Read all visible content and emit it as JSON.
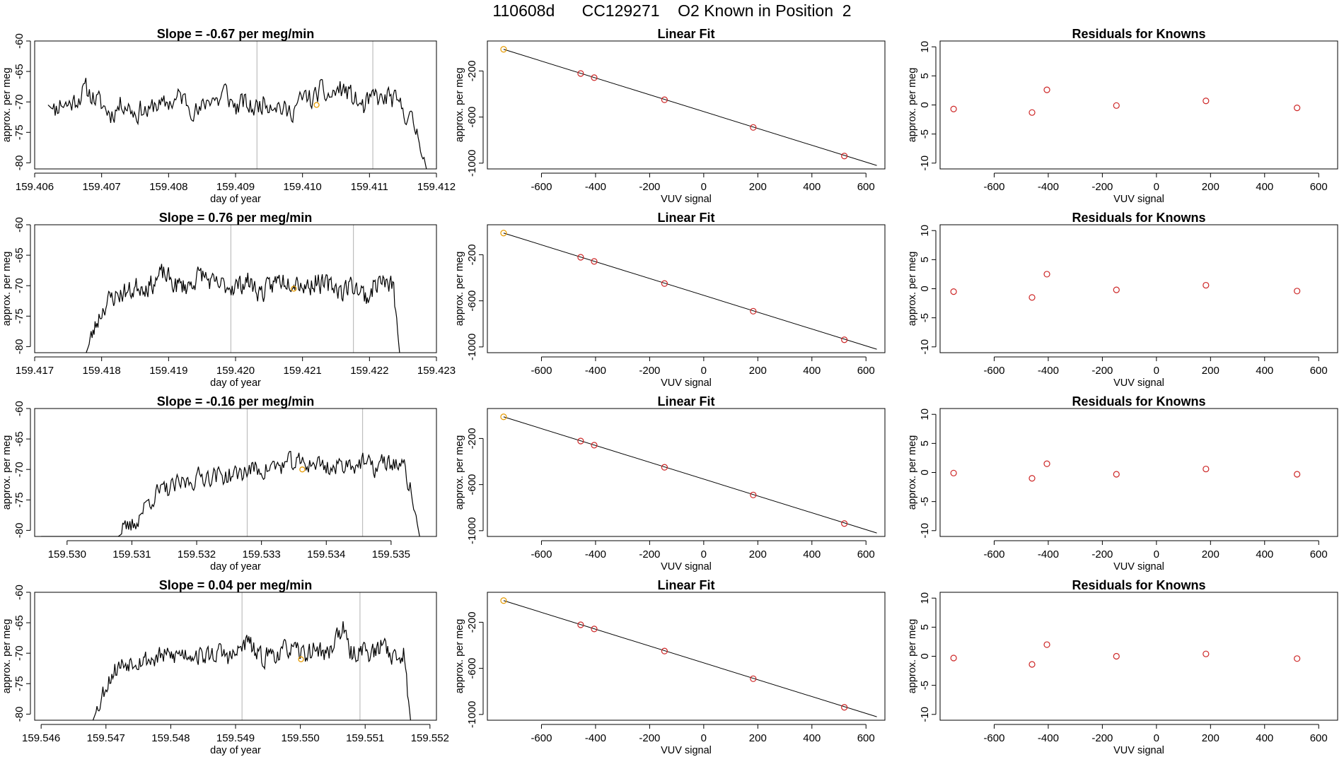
{
  "figure_title": "110608d      CC129271    O2 Known in Position  2",
  "colors": {
    "line": "#000000",
    "frame": "#000000",
    "vline": "#bebebe",
    "known_point": "#cd2626",
    "highlight_point": "#e69a00"
  },
  "chart_data": [
    {
      "type": "line",
      "row": 0,
      "title": "Slope =  -0.67  per meg/min",
      "xlabel": "day of year",
      "ylabel": "approx. per meg",
      "xlim": [
        159.406,
        159.412
      ],
      "ylim": [
        -81,
        -60
      ],
      "xticks": [
        "159.406",
        "159.407",
        "159.408",
        "159.409",
        "159.410",
        "159.411",
        "159.412"
      ],
      "yticks": [
        "-60",
        "-65",
        "-70",
        "-75",
        "-80"
      ],
      "vlines": [
        159.40932,
        159.41105
      ],
      "highlight": [
        159.41021,
        -70.5
      ],
      "series": {
        "start": 159.4062,
        "end": 159.41185,
        "base": [
          -70.5,
          -71.5,
          -70,
          -70.5,
          -70,
          -69,
          -68,
          -69,
          -70,
          -71,
          -72,
          -71,
          -70,
          -71,
          -72,
          -71,
          -72,
          -70,
          -71,
          -70,
          -70,
          -69,
          -70,
          -71,
          -72,
          -70,
          -69,
          -70,
          -68,
          -70,
          -71,
          -70,
          -71,
          -71,
          -70,
          -70,
          -70,
          -71,
          -72,
          -71,
          -70,
          -69,
          -70,
          -68,
          -69,
          -69,
          -68,
          -68,
          -69,
          -70,
          -71,
          -70,
          -69,
          -70,
          -69,
          -70,
          -71,
          -72,
          -74,
          -76,
          -81
        ],
        "noise": 2.5,
        "seed": 11
      }
    },
    {
      "type": "line",
      "row": 1,
      "title": "Slope =  0.76  per meg/min",
      "xlabel": "day of year",
      "ylabel": "approx. per meg",
      "xlim": [
        159.417,
        159.423
      ],
      "ylim": [
        -81,
        -60
      ],
      "xticks": [
        "159.417",
        "159.418",
        "159.419",
        "159.420",
        "159.421",
        "159.422",
        "159.423"
      ],
      "yticks": [
        "-60",
        "-65",
        "-70",
        "-75",
        "-80"
      ],
      "vlines": [
        159.41993,
        159.42176
      ],
      "highlight": [
        159.42087,
        -70.5
      ],
      "series": {
        "start": 159.41777,
        "end": 159.42245,
        "base": [
          -81,
          -78,
          -75,
          -73,
          -72,
          -71.5,
          -71,
          -71,
          -70,
          -70,
          -70,
          -69,
          -68,
          -69,
          -70,
          -70,
          -70,
          -69,
          -68,
          -69,
          -70,
          -70,
          -70,
          -70,
          -70,
          -69,
          -70,
          -71,
          -71,
          -70,
          -69,
          -69,
          -69,
          -69,
          -70,
          -70,
          -69,
          -70,
          -70,
          -70,
          -71,
          -70,
          -70,
          -71,
          -72,
          -70,
          -69,
          -70,
          -70,
          -81
        ],
        "noise": 2.4,
        "seed": 23
      }
    },
    {
      "type": "line",
      "row": 2,
      "title": "Slope =  -0.16  per meg/min",
      "xlabel": "day of year",
      "ylabel": "approx. per meg",
      "xlim": [
        159.5295,
        159.5357
      ],
      "ylim": [
        -81,
        -60
      ],
      "xticks": [
        "159.530",
        "159.531",
        "159.532",
        "159.533",
        "159.534",
        "159.535"
      ],
      "yticks": [
        "-60",
        "-65",
        "-70",
        "-75",
        "-80"
      ],
      "vlines": [
        159.53278,
        159.53456
      ],
      "highlight": [
        159.53363,
        -70
      ],
      "series": {
        "start": 159.5296,
        "end": 159.53544,
        "base": [
          -81,
          -81,
          -81,
          -81,
          -81,
          -81,
          -81,
          -81,
          -81,
          -81,
          -81,
          -80,
          -79,
          -77,
          -75,
          -74,
          -73.5,
          -73,
          -72.5,
          -72,
          -71.5,
          -71,
          -71,
          -71,
          -71,
          -71,
          -70.5,
          -70,
          -70,
          -70,
          -69.5,
          -69.5,
          -69,
          -69,
          -69,
          -69,
          -69,
          -69.5,
          -70,
          -69,
          -69,
          -69,
          -69,
          -70,
          -69,
          -69,
          -69,
          -70,
          -74,
          -81
        ],
        "noise": 2.3,
        "seed": 37,
        "noise_from": 11
      }
    },
    {
      "type": "line",
      "row": 3,
      "title": "Slope =  0.04  per meg/min",
      "xlabel": "day of year",
      "ylabel": "approx. per meg",
      "xlim": [
        159.5459,
        159.5521
      ],
      "ylim": [
        -81,
        -60
      ],
      "xticks": [
        "159.546",
        "159.547",
        "159.548",
        "159.549",
        "159.550",
        "159.551",
        "159.552"
      ],
      "yticks": [
        "-60",
        "-65",
        "-70",
        "-75",
        "-80"
      ],
      "vlines": [
        159.5491,
        159.55092
      ],
      "highlight": [
        159.55001,
        -71
      ],
      "series": {
        "start": 159.5468,
        "end": 159.5517,
        "base": [
          -81,
          -78,
          -75,
          -73,
          -72,
          -71.5,
          -71,
          -71,
          -71,
          -71,
          -70.5,
          -70.5,
          -70.5,
          -70,
          -70,
          -70,
          -70.5,
          -70.5,
          -70,
          -70,
          -70.5,
          -70.5,
          -69,
          -68,
          -70,
          -71,
          -70,
          -70,
          -70,
          -69,
          -70,
          -70,
          -70,
          -69,
          -70,
          -70,
          -67,
          -66,
          -70,
          -70,
          -69,
          -70,
          -70,
          -68,
          -70,
          -71,
          -70,
          -81
        ],
        "noise": 2.3,
        "seed": 53
      }
    },
    {
      "type": "scatter",
      "subtype": "linear-fit",
      "row": 0,
      "title": "Linear Fit",
      "xlabel": "VUV signal",
      "ylabel": "approx. per meg",
      "xlim": [
        -800,
        670
      ],
      "ylim": [
        -1050,
        60
      ],
      "xticks": [
        "-600",
        "-400",
        "-200",
        "0",
        "200",
        "400",
        "600"
      ],
      "yticks": [
        "-200",
        "-600",
        "-1000"
      ],
      "fit_line": [
        [
          -740,
          -12
        ],
        [
          640,
          -1020
        ]
      ],
      "points": [
        [
          -740,
          -12
        ],
        [
          -455,
          -222
        ],
        [
          -405,
          -258
        ],
        [
          -145,
          -450
        ],
        [
          183,
          -690
        ],
        [
          520,
          -938
        ]
      ],
      "highlight_index": 0
    },
    {
      "type": "scatter",
      "subtype": "linear-fit",
      "row": 1,
      "title": "Linear Fit",
      "xlabel": "VUV signal",
      "ylabel": "approx. per meg",
      "xlim": [
        -800,
        670
      ],
      "ylim": [
        -1050,
        60
      ],
      "xticks": [
        "-600",
        "-400",
        "-200",
        "0",
        "200",
        "400",
        "600"
      ],
      "yticks": [
        "-200",
        "-600",
        "-1000"
      ],
      "fit_line": [
        [
          -740,
          -12
        ],
        [
          640,
          -1020
        ]
      ],
      "points": [
        [
          -740,
          -12
        ],
        [
          -455,
          -222
        ],
        [
          -405,
          -258
        ],
        [
          -145,
          -450
        ],
        [
          183,
          -690
        ],
        [
          520,
          -938
        ]
      ],
      "highlight_index": 0
    },
    {
      "type": "scatter",
      "subtype": "linear-fit",
      "row": 2,
      "title": "Linear Fit",
      "xlabel": "VUV signal",
      "ylabel": "approx. per meg",
      "xlim": [
        -800,
        670
      ],
      "ylim": [
        -1050,
        60
      ],
      "xticks": [
        "-600",
        "-400",
        "-200",
        "0",
        "200",
        "400",
        "600"
      ],
      "yticks": [
        "-200",
        "-600",
        "-1000"
      ],
      "fit_line": [
        [
          -740,
          -12
        ],
        [
          640,
          -1020
        ]
      ],
      "points": [
        [
          -740,
          -12
        ],
        [
          -455,
          -222
        ],
        [
          -405,
          -258
        ],
        [
          -145,
          -450
        ],
        [
          183,
          -690
        ],
        [
          520,
          -938
        ]
      ],
      "highlight_index": 0
    },
    {
      "type": "scatter",
      "subtype": "linear-fit",
      "row": 3,
      "title": "Linear Fit",
      "xlabel": "VUV signal",
      "ylabel": "approx. per meg",
      "xlim": [
        -800,
        670
      ],
      "ylim": [
        -1050,
        60
      ],
      "xticks": [
        "-600",
        "-400",
        "-200",
        "0",
        "200",
        "400",
        "600"
      ],
      "yticks": [
        "-200",
        "-600",
        "-1000"
      ],
      "fit_line": [
        [
          -740,
          -12
        ],
        [
          640,
          -1020
        ]
      ],
      "points": [
        [
          -740,
          -12
        ],
        [
          -455,
          -222
        ],
        [
          -405,
          -258
        ],
        [
          -145,
          -450
        ],
        [
          183,
          -690
        ],
        [
          520,
          -938
        ]
      ],
      "highlight_index": 0
    },
    {
      "type": "scatter",
      "subtype": "residuals",
      "row": 0,
      "title": "Residuals for Knowns",
      "xlabel": "VUV signal",
      "ylabel": "approx. per meg",
      "xlim": [
        -800,
        670
      ],
      "ylim": [
        -11,
        11
      ],
      "xticks": [
        "-600",
        "-400",
        "-200",
        "0",
        "200",
        "400",
        "600"
      ],
      "yticks": [
        "10",
        "5",
        "0",
        "-5",
        "-10"
      ],
      "points": [
        [
          -750,
          -0.7
        ],
        [
          -460,
          -1.3
        ],
        [
          -405,
          2.6
        ],
        [
          -148,
          -0.1
        ],
        [
          183,
          0.7
        ],
        [
          520,
          -0.5
        ]
      ]
    },
    {
      "type": "scatter",
      "subtype": "residuals",
      "row": 1,
      "title": "Residuals for Knowns",
      "xlabel": "VUV signal",
      "ylabel": "approx. per meg",
      "xlim": [
        -800,
        670
      ],
      "ylim": [
        -11,
        11
      ],
      "xticks": [
        "-600",
        "-400",
        "-200",
        "0",
        "200",
        "400",
        "600"
      ],
      "yticks": [
        "10",
        "5",
        "0",
        "-5",
        "-10"
      ],
      "points": [
        [
          -750,
          -0.5
        ],
        [
          -460,
          -1.5
        ],
        [
          -405,
          2.5
        ],
        [
          -148,
          -0.2
        ],
        [
          183,
          0.6
        ],
        [
          520,
          -0.4
        ]
      ]
    },
    {
      "type": "scatter",
      "subtype": "residuals",
      "row": 2,
      "title": "Residuals for Knowns",
      "xlabel": "VUV signal",
      "ylabel": "approx. per meg",
      "xlim": [
        -800,
        670
      ],
      "ylim": [
        -11,
        11
      ],
      "xticks": [
        "-600",
        "-400",
        "-200",
        "0",
        "200",
        "400",
        "600"
      ],
      "yticks": [
        "10",
        "5",
        "0",
        "-5",
        "-10"
      ],
      "points": [
        [
          -750,
          -0.1
        ],
        [
          -460,
          -1.0
        ],
        [
          -405,
          1.5
        ],
        [
          -148,
          -0.3
        ],
        [
          183,
          0.6
        ],
        [
          520,
          -0.3
        ]
      ]
    },
    {
      "type": "scatter",
      "subtype": "residuals",
      "row": 3,
      "title": "Residuals for Knowns",
      "xlabel": "VUV signal",
      "ylabel": "approx. per meg",
      "xlim": [
        -800,
        670
      ],
      "ylim": [
        -11,
        11
      ],
      "xticks": [
        "-600",
        "-400",
        "-200",
        "0",
        "200",
        "400",
        "600"
      ],
      "yticks": [
        "10",
        "5",
        "0",
        "-5",
        "-10"
      ],
      "points": [
        [
          -750,
          -0.3
        ],
        [
          -460,
          -1.4
        ],
        [
          -405,
          2.0
        ],
        [
          -148,
          0.0
        ],
        [
          183,
          0.4
        ],
        [
          520,
          -0.4
        ]
      ]
    }
  ]
}
